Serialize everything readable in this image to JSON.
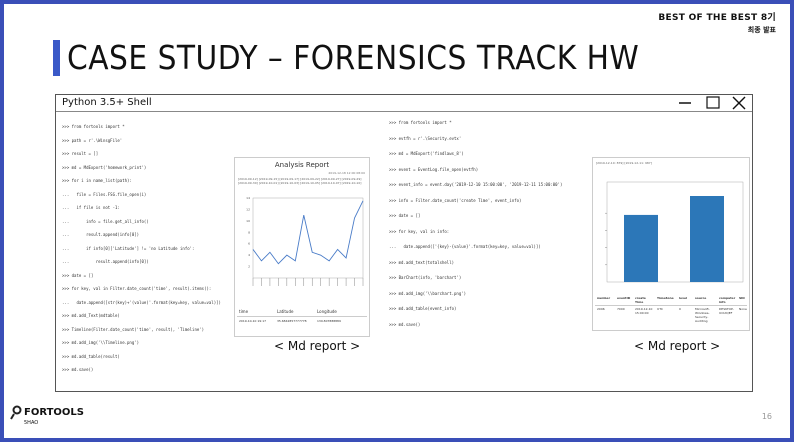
{
  "header": {
    "event_line": "BEST OF THE BEST 8기",
    "sub_line": "최종 발표"
  },
  "title": "CASE STUDY – FORENSICS TRACK HW",
  "window": {
    "title": "Python 3.5+ Shell",
    "controls": [
      "minimize-icon",
      "maximize-icon",
      "close-icon"
    ]
  },
  "left_code": [
    ">>> from fortools import *",
    ">>> path = r'.\\WinsgFile'",
    ">>> result = []",
    ">>> md = MdExport('homework_print')",
    ">>> for i in name_list(path):",
    "...   file = Files.FSG.file_open(i)",
    "...   if file is not -1:",
    "...       info = file.get_all_info()",
    "...       result.append(info[0])",
    "...       if info[0]['Latitude'] != 'no Latitude info':",
    "...           result.append(info[0])",
    ">>> date = []",
    ">>> for key, val in Filter.date_count('time', result).items():",
    "...   date.append([str(key)+'(value)'.format(key=key, value=val)])",
    ">>> md.add_Text(mdtable)",
    ">>> Timeline(Filter.date_count('time', result), 'Timeline')",
    ">>> md.add_img('\\\\Timeline.png')",
    ">>> md.add_table(result)",
    ">>> md.save()"
  ],
  "right_code": [
    ">>> from fortools import *",
    ">>> evtfh = r'.\\Security.evtx'",
    ">>> md = MdExport('findlaws_8')",
    ">>> event = EventLog.file_open(evtfh)",
    ">>> event_info = event.day('2019-12-10 15:00:00', '2019-12-11 15:00:00')",
    ">>> info = Filter.date_count('create Time', event_info)",
    ">>> date = []",
    ">>> for key, val in info:",
    "...   date.append(['{key}-{value}'.format(key=key, value=val)])",
    ">>> md.add_text(totalshell)",
    ">>> BarChart(info, 'barchart')",
    ">>> md.add_img('\\\\barchart.png')",
    ">>> md.add_table(event_info)",
    ">>> md.save()"
  ],
  "report_left": {
    "title": "Analysis Report",
    "date": "2019-12-18 12:00 08:00",
    "tags": "[2019-09-12] [2019-09-15] [2019-09-17] [2019-09-22] [2019-09-27] [2019-09-29] [2019-09-30] [2019-10-01] [2019-10-03] [2019-10-05] [2019-10-07] [2019-10-10]",
    "table_headers": [
      "time",
      "Latitude",
      "Longitude"
    ],
    "table_row": [
      "2019-10-10 19:17",
      "35.6842857777778",
      "139.807888889"
    ]
  },
  "chart_data": [
    {
      "type": "line",
      "title": "",
      "xlabel": "",
      "ylabel": "",
      "ylim": [
        0,
        14
      ],
      "yticks": [
        2,
        4,
        6,
        8,
        10,
        12,
        14
      ],
      "values": [
        5,
        3,
        4.5,
        2.5,
        4,
        3,
        11,
        4.5,
        4,
        3,
        5,
        3.5,
        10.5,
        13.5
      ],
      "color": "#4a7cc8"
    },
    {
      "type": "bar",
      "title": "",
      "ylim": [
        0,
        1
      ],
      "categories": [
        "",
        ""
      ],
      "values": [
        0.78,
        1.0
      ],
      "color": "#2c77b8"
    }
  ],
  "report_right": {
    "tags": "[2019-12-10: 879] [2019-12-11: 987]",
    "table_headers": [
      "number",
      "eventID",
      "create Time",
      "TimeZone",
      "level",
      "source",
      "computer info",
      "SID"
    ],
    "table_row": [
      "2096",
      "7000",
      "2019-12-10 15:00:00",
      "UTC",
      "0",
      "Microsoft-Windows-Security-Auditing",
      "DESKTOP-UCUIQEF",
      "None"
    ]
  },
  "captions": {
    "left": "< Md report >",
    "right": "< Md report >"
  },
  "footer": {
    "logo": "FORTOOLS",
    "sub": "5HAO",
    "page": "16"
  }
}
